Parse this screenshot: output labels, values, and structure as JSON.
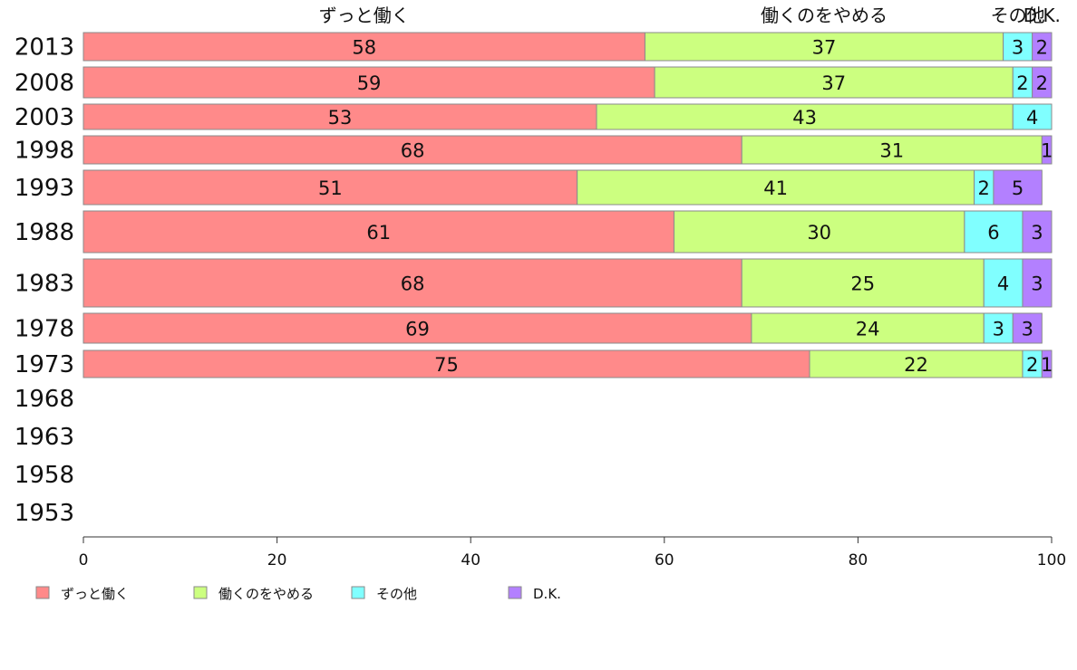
{
  "chart_data": {
    "type": "bar",
    "orientation": "horizontal",
    "stacked": true,
    "title": "",
    "xlabel": "",
    "ylabel": "",
    "xlim": [
      0,
      100
    ],
    "x_ticks": [
      "0",
      "20",
      "40",
      "60",
      "80",
      "100"
    ],
    "categories": [
      "2013",
      "2008",
      "2003",
      "1998",
      "1993",
      "1988",
      "1983",
      "1978",
      "1973",
      "1968",
      "1963",
      "1958",
      "1953"
    ],
    "top_labels": [
      "ずっと働く",
      "働くのをやめる",
      "その他",
      "D.K."
    ],
    "series": [
      {
        "name": "ずっと働く",
        "color": "#ff8a8a",
        "values": [
          58,
          59,
          53,
          68,
          51,
          61,
          68,
          69,
          75,
          null,
          null,
          null,
          null
        ]
      },
      {
        "name": "働くのをやめる",
        "color": "#ccff80",
        "values": [
          37,
          37,
          43,
          31,
          41,
          30,
          25,
          24,
          22,
          null,
          null,
          null,
          null
        ]
      },
      {
        "name": "その他",
        "color": "#80ffff",
        "values": [
          3,
          2,
          4,
          0,
          2,
          6,
          4,
          3,
          2,
          null,
          null,
          null,
          null
        ]
      },
      {
        "name": "D.K.",
        "color": "#b380ff",
        "values": [
          2,
          2,
          0,
          1,
          5,
          3,
          3,
          3,
          1,
          null,
          null,
          null,
          null
        ]
      }
    ],
    "legend": {
      "position": "bottom-left",
      "labels": [
        "ずっと働く",
        "働くのをやめる",
        "その他",
        "D.K."
      ]
    },
    "grid": false
  }
}
